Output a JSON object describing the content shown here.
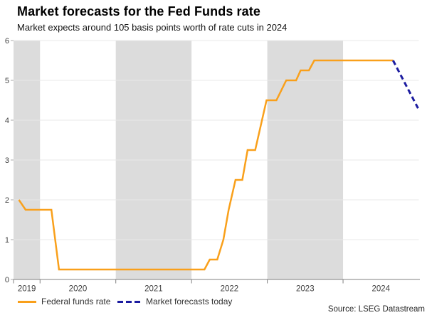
{
  "header": {
    "title": "Market forecasts for the Fed Funds rate",
    "subtitle": "Market expects around 105 basis points worth of rate cuts in 2024"
  },
  "legend": {
    "items": [
      {
        "label": "Federal funds rate",
        "color": "#F9A01B",
        "style": "solid"
      },
      {
        "label": "Market forecasts today",
        "color": "#1C1CA0",
        "style": "dashed"
      }
    ]
  },
  "footer": {
    "source": "Source: LSEG Datastream"
  },
  "colors": {
    "federal_funds_line": "#F9A01B",
    "forecast_line": "#1C1CA0",
    "shaded_band": "#DCDCDC",
    "gridline": "#E8E8E8",
    "axis_line": "#808080",
    "tick_text": "#404040"
  },
  "chart_data": {
    "type": "line",
    "title": "Market forecasts for the Fed Funds rate",
    "subtitle": "Market expects around 105 basis points worth of rate cuts in 2024",
    "source": "Source: LSEG Datastream",
    "grid": "horizontal",
    "legend_position": "bottom-left",
    "x_axis": {
      "label": "",
      "range": [
        2019.65,
        2025.0
      ],
      "tick_label_years": [
        2019,
        2020,
        2021,
        2022,
        2023,
        2024
      ],
      "boundary_ticks": [
        2019.65,
        2020,
        2021,
        2022,
        2023,
        2024
      ]
    },
    "y_axis": {
      "label": "",
      "range": [
        0,
        6
      ],
      "ticks": [
        0,
        1,
        2,
        3,
        4,
        5,
        6
      ]
    },
    "shaded_bands_years": [
      [
        2019.65,
        2020
      ],
      [
        2021,
        2022
      ],
      [
        2023,
        2024
      ]
    ],
    "series": [
      {
        "name": "Federal funds rate",
        "color": "#F9A01B",
        "style": "solid",
        "points": [
          [
            2019.72,
            2.0
          ],
          [
            2019.81,
            1.75
          ],
          [
            2020.15,
            1.75
          ],
          [
            2020.25,
            0.25
          ],
          [
            2022.17,
            0.25
          ],
          [
            2022.24,
            0.5
          ],
          [
            2022.34,
            0.5
          ],
          [
            2022.42,
            1.0
          ],
          [
            2022.49,
            1.75
          ],
          [
            2022.58,
            2.5
          ],
          [
            2022.67,
            2.5
          ],
          [
            2022.74,
            3.25
          ],
          [
            2022.84,
            3.25
          ],
          [
            2022.99,
            4.5
          ],
          [
            2023.12,
            4.5
          ],
          [
            2023.25,
            5.0
          ],
          [
            2023.38,
            5.0
          ],
          [
            2023.44,
            5.25
          ],
          [
            2023.55,
            5.25
          ],
          [
            2023.62,
            5.5
          ],
          [
            2024.66,
            5.5
          ]
        ]
      },
      {
        "name": "Market forecasts today",
        "color": "#1C1CA0",
        "style": "dashed",
        "points": [
          [
            2024.66,
            5.5
          ],
          [
            2024.99,
            4.3
          ]
        ]
      }
    ]
  }
}
